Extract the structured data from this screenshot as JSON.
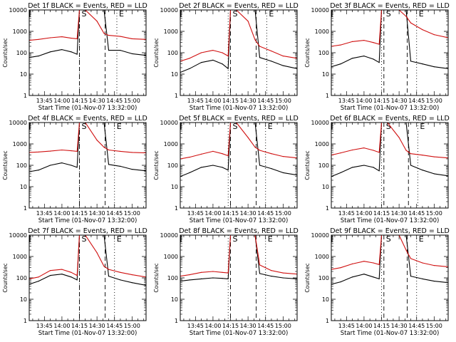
{
  "figure": {
    "background": "#ffffff",
    "events_color": "#000000",
    "lld_color": "#d01010",
    "xlabel": "Start Time (01-Nov-07 13:32:00)",
    "ylabel": "Counts/sec",
    "xtick_labels": [
      "13:45",
      "14:00",
      "14:15",
      "14:30",
      "14:45",
      "15:00"
    ],
    "ytick_labels": [
      "1",
      "10",
      "100",
      "1000",
      "10000"
    ],
    "marker_labels": [
      "S",
      "E"
    ]
  },
  "chart_data": [
    {
      "type": "line",
      "title": "Det 1f BLACK = Events, RED = LLD",
      "xlim": [
        "13:32",
        "15:12"
      ],
      "ylim": [
        1,
        10000
      ],
      "yscale": "log",
      "x": [
        "13:32",
        "13:40",
        "13:50",
        "14:00",
        "14:08",
        "14:13",
        "14:15",
        "14:20",
        "14:30",
        "14:36",
        "14:40",
        "14:50",
        "15:00",
        "15:12"
      ],
      "series": [
        {
          "name": "Events",
          "values": [
            60,
            70,
            110,
            140,
            110,
            85,
            10000,
            10000,
            10000,
            10000,
            130,
            130,
            90,
            75
          ]
        },
        {
          "name": "LLD",
          "values": [
            380,
            420,
            500,
            560,
            480,
            450,
            10000,
            10000,
            3000,
            800,
            650,
            580,
            450,
            420
          ]
        }
      ],
      "markers": {
        "S_dotted": "14:15",
        "S_dashed": "14:15",
        "E_dashed": "14:37",
        "E_dotted": "14:47"
      }
    },
    {
      "type": "line",
      "title": "Det 2f BLACK = Events, RED = LLD",
      "xlim": [
        "13:32",
        "15:12"
      ],
      "ylim": [
        1,
        10000
      ],
      "yscale": "log",
      "x": [
        "13:32",
        "13:40",
        "13:50",
        "14:00",
        "14:08",
        "14:13",
        "14:15",
        "14:20",
        "14:30",
        "14:36",
        "14:40",
        "14:50",
        "15:00",
        "15:12"
      ],
      "series": [
        {
          "name": "Events",
          "values": [
            12,
            18,
            35,
            45,
            30,
            18,
            10000,
            10000,
            10000,
            10000,
            60,
            40,
            25,
            18
          ]
        },
        {
          "name": "LLD",
          "values": [
            40,
            55,
            100,
            130,
            100,
            70,
            10000,
            10000,
            3000,
            400,
            200,
            120,
            70,
            55
          ]
        }
      ],
      "markers": {
        "S_dotted": "14:13",
        "S_dashed": "14:15",
        "E_dashed": "14:37",
        "E_dotted": "14:46"
      }
    },
    {
      "type": "line",
      "title": "Det 3f BLACK = Events, RED = LLD",
      "xlim": [
        "13:32",
        "15:12"
      ],
      "ylim": [
        1,
        10000
      ],
      "yscale": "log",
      "x": [
        "13:32",
        "13:40",
        "13:50",
        "14:00",
        "14:08",
        "14:13",
        "14:15",
        "14:20",
        "14:30",
        "14:36",
        "14:40",
        "14:50",
        "15:00",
        "15:12"
      ],
      "series": [
        {
          "name": "Events",
          "values": [
            22,
            30,
            55,
            70,
            50,
            35,
            10000,
            10000,
            10000,
            10000,
            40,
            30,
            22,
            18
          ]
        },
        {
          "name": "LLD",
          "values": [
            200,
            230,
            330,
            380,
            300,
            250,
            10000,
            10000,
            10000,
            5000,
            2500,
            1200,
            700,
            500
          ]
        }
      ],
      "markers": {
        "S_dotted": "14:15",
        "S_dashed": "14:17",
        "E_dashed": "14:37",
        "E_dotted": "14:45"
      }
    },
    {
      "type": "line",
      "title": "Det 4f BLACK = Events, RED = LLD",
      "xlim": [
        "13:32",
        "15:12"
      ],
      "ylim": [
        1,
        10000
      ],
      "yscale": "log",
      "x": [
        "13:32",
        "13:40",
        "13:50",
        "14:00",
        "14:08",
        "14:13",
        "14:15",
        "14:20",
        "14:30",
        "14:36",
        "14:40",
        "14:50",
        "15:00",
        "15:12"
      ],
      "series": [
        {
          "name": "Events",
          "values": [
            50,
            60,
            100,
            130,
            100,
            80,
            10000,
            10000,
            10000,
            10000,
            110,
            90,
            65,
            55
          ]
        },
        {
          "name": "LLD",
          "values": [
            400,
            420,
            460,
            520,
            480,
            450,
            10000,
            10000,
            1500,
            700,
            520,
            450,
            400,
            380
          ]
        }
      ],
      "markers": {
        "S_dotted": "14:15",
        "S_dashed": "14:15",
        "E_dashed": "14:37",
        "E_dotted": "14:45"
      }
    },
    {
      "type": "line",
      "title": "Det 5f BLACK = Events, RED = LLD",
      "xlim": [
        "13:32",
        "15:12"
      ],
      "ylim": [
        1,
        10000
      ],
      "yscale": "log",
      "x": [
        "13:32",
        "13:40",
        "13:50",
        "14:00",
        "14:08",
        "14:13",
        "14:15",
        "14:20",
        "14:30",
        "14:36",
        "14:40",
        "14:50",
        "15:00",
        "15:12"
      ],
      "series": [
        {
          "name": "Events",
          "values": [
            30,
            45,
            80,
            100,
            80,
            60,
            10000,
            10000,
            10000,
            10000,
            100,
            70,
            45,
            35
          ]
        },
        {
          "name": "LLD",
          "values": [
            200,
            240,
            330,
            450,
            350,
            280,
            10000,
            10000,
            2000,
            700,
            500,
            350,
            260,
            220
          ]
        }
      ],
      "markers": {
        "S_dotted": "14:13",
        "S_dashed": "14:15",
        "E_dashed": "14:37",
        "E_dotted": "14:45"
      }
    },
    {
      "type": "line",
      "title": "Det 6f BLACK = Events, RED = LLD",
      "xlim": [
        "13:32",
        "15:12"
      ],
      "ylim": [
        1,
        10000
      ],
      "yscale": "log",
      "x": [
        "13:32",
        "13:40",
        "13:50",
        "14:00",
        "14:08",
        "14:13",
        "14:15",
        "14:20",
        "14:30",
        "14:36",
        "14:40",
        "14:50",
        "15:00",
        "15:12"
      ],
      "series": [
        {
          "name": "Events",
          "values": [
            30,
            45,
            80,
            100,
            80,
            55,
            10000,
            10000,
            10000,
            10000,
            100,
            60,
            40,
            32
          ]
        },
        {
          "name": "LLD",
          "values": [
            300,
            380,
            520,
            650,
            500,
            400,
            10000,
            10000,
            2000,
            500,
            350,
            300,
            250,
            220
          ]
        }
      ],
      "markers": {
        "S_dotted": "14:15",
        "S_dashed": "14:17",
        "E_dashed": "14:38",
        "E_dotted": "14:46"
      }
    },
    {
      "type": "line",
      "title": "Det 7f BLACK = Events, RED = LLD",
      "xlim": [
        "13:32",
        "15:12"
      ],
      "ylim": [
        1,
        10000
      ],
      "yscale": "log",
      "x": [
        "13:32",
        "13:40",
        "13:50",
        "14:00",
        "14:08",
        "14:13",
        "14:15",
        "14:20",
        "14:30",
        "14:36",
        "14:40",
        "14:50",
        "15:00",
        "15:12"
      ],
      "series": [
        {
          "name": "Events",
          "values": [
            50,
            70,
            130,
            150,
            110,
            80,
            10000,
            10000,
            10000,
            10000,
            120,
            80,
            60,
            45
          ]
        },
        {
          "name": "LLD",
          "values": [
            90,
            110,
            220,
            250,
            180,
            130,
            10000,
            10000,
            1500,
            350,
            250,
            180,
            140,
            110
          ]
        }
      ],
      "markers": {
        "S_dotted": "14:15",
        "S_dashed": "14:15",
        "E_dashed": "14:37",
        "E_dotted": "14:45"
      }
    },
    {
      "type": "line",
      "title": "Det 8f BLACK = Events, RED = LLD",
      "xlim": [
        "13:32",
        "15:12"
      ],
      "ylim": [
        1,
        10000
      ],
      "yscale": "log",
      "x": [
        "13:32",
        "13:40",
        "13:50",
        "14:00",
        "14:08",
        "14:13",
        "14:15",
        "14:20",
        "14:30",
        "14:36",
        "14:40",
        "14:50",
        "15:00",
        "15:12"
      ],
      "series": [
        {
          "name": "Events",
          "values": [
            70,
            80,
            90,
            100,
            95,
            90,
            10000,
            10000,
            10000,
            10000,
            160,
            120,
            100,
            90
          ]
        },
        {
          "name": "LLD",
          "values": [
            120,
            140,
            180,
            200,
            180,
            170,
            10000,
            10000,
            10000,
            10000,
            400,
            220,
            170,
            150
          ]
        }
      ],
      "markers": {
        "S_dotted": "14:13",
        "S_dashed": "14:15",
        "E_dashed": "14:37",
        "E_dotted": "14:45"
      }
    },
    {
      "type": "line",
      "title": "Det 9f BLACK = Events, RED = LLD",
      "xlim": [
        "13:32",
        "15:12"
      ],
      "ylim": [
        1,
        10000
      ],
      "yscale": "log",
      "x": [
        "13:32",
        "13:40",
        "13:50",
        "14:00",
        "14:08",
        "14:13",
        "14:15",
        "14:20",
        "14:30",
        "14:36",
        "14:40",
        "14:50",
        "15:00",
        "15:12"
      ],
      "series": [
        {
          "name": "Events",
          "values": [
            50,
            65,
            110,
            150,
            110,
            90,
            10000,
            10000,
            10000,
            10000,
            120,
            90,
            70,
            60
          ]
        },
        {
          "name": "LLD",
          "values": [
            250,
            300,
            450,
            600,
            500,
            420,
            10000,
            10000,
            10000,
            2000,
            800,
            500,
            380,
            330
          ]
        }
      ],
      "markers": {
        "S_dotted": "14:15",
        "S_dashed": "14:17",
        "E_dashed": "14:37",
        "E_dotted": "14:45"
      }
    }
  ]
}
